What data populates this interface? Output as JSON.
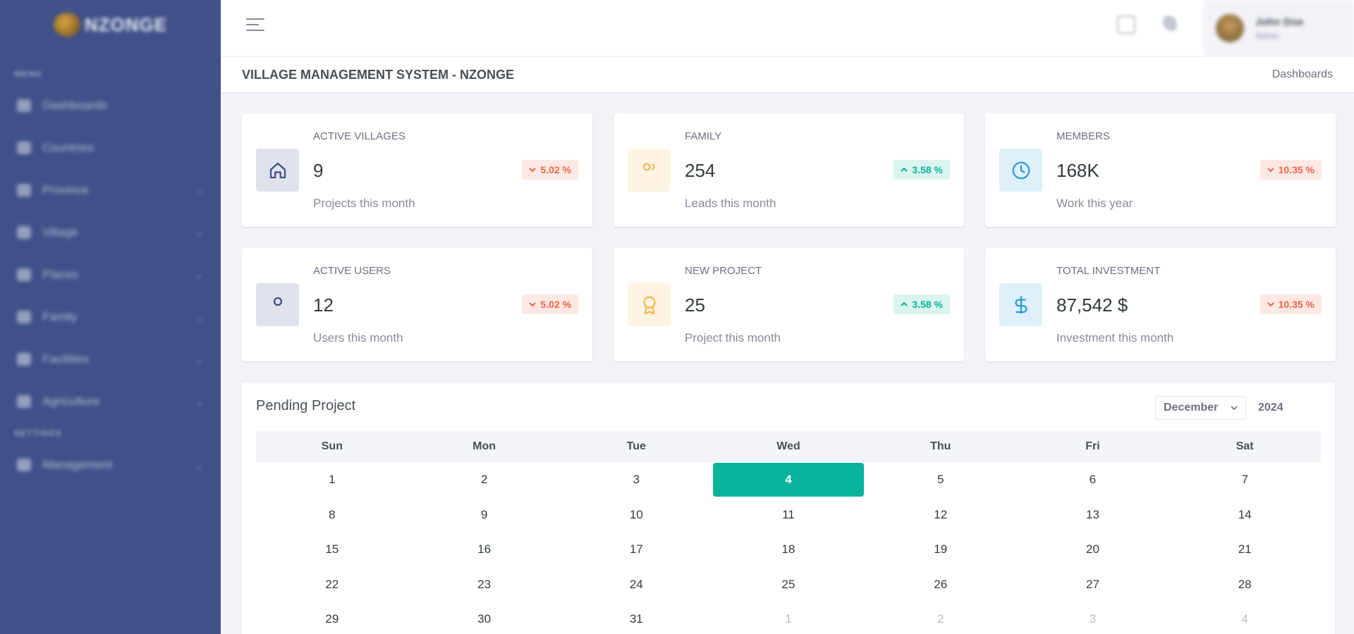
{
  "sidebar": {
    "logo_text": "NZONGE",
    "sections": [
      {
        "title": "MENU"
      },
      {
        "title": "SETTINGS"
      }
    ],
    "items": [
      {
        "label": "Dashboards",
        "icon": "dashboard-icon",
        "chevron": false
      },
      {
        "label": "Countries",
        "icon": "globe-icon",
        "chevron": false
      },
      {
        "label": "Province",
        "icon": "map-icon",
        "chevron": true
      },
      {
        "label": "Village",
        "icon": "building-icon",
        "chevron": true
      },
      {
        "label": "Places",
        "icon": "pin-icon",
        "chevron": true
      },
      {
        "label": "Family",
        "icon": "users-icon",
        "chevron": true
      },
      {
        "label": "Facilities",
        "icon": "home-icon",
        "chevron": true
      },
      {
        "label": "Agriculture",
        "icon": "plant-icon",
        "chevron": true
      },
      {
        "label": "Management",
        "icon": "briefcase-icon",
        "chevron": true
      }
    ]
  },
  "topbar": {
    "user_name": "John Doe",
    "user_role": "Admin"
  },
  "page": {
    "title": "VILLAGE MANAGEMENT SYSTEM - NZONGE",
    "breadcrumb": "Dashboards"
  },
  "cards": [
    {
      "label": "ACTIVE VILLAGES",
      "value": "9",
      "sub": "Projects this month",
      "change": "5.02 %",
      "trend": "down",
      "icon": "home-icon",
      "icon_bg": "#dfe2ea",
      "icon_color": "#405189"
    },
    {
      "label": "FAMILY",
      "value": "254",
      "sub": "Leads this month",
      "change": "3.58 %",
      "trend": "up",
      "icon": "users-icon",
      "icon_bg": "#fef4e4",
      "icon_color": "#f7b84b"
    },
    {
      "label": "MEMBERS",
      "value": "168K",
      "sub": "Work this year",
      "change": "10.35 %",
      "trend": "down",
      "icon": "clock-icon",
      "icon_bg": "#dff0fa",
      "icon_color": "#299cdb"
    },
    {
      "label": "ACTIVE USERS",
      "value": "12",
      "sub": "Users this month",
      "change": "5.02 %",
      "trend": "down",
      "icon": "user-icon",
      "icon_bg": "#dfe2ea",
      "icon_color": "#405189"
    },
    {
      "label": "NEW PROJECT",
      "value": "25",
      "sub": "Project this month",
      "change": "3.58 %",
      "trend": "up",
      "icon": "award-icon",
      "icon_bg": "#fef4e4",
      "icon_color": "#f7b84b"
    },
    {
      "label": "TOTAL INVESTMENT",
      "value": "87,542 $",
      "sub": "Investment this month",
      "change": "10.35 %",
      "trend": "down",
      "icon": "dollar-icon",
      "icon_bg": "#dff0fa",
      "icon_color": "#299cdb"
    }
  ],
  "calendar": {
    "title": "Pending Project",
    "month": "December",
    "year": "2024",
    "weekdays": [
      "Sun",
      "Mon",
      "Tue",
      "Wed",
      "Thu",
      "Fri",
      "Sat"
    ],
    "today": "4",
    "accent": "#0ab39c",
    "weeks": [
      [
        {
          "d": "1"
        },
        {
          "d": "2"
        },
        {
          "d": "3"
        },
        {
          "d": "4",
          "today": true
        },
        {
          "d": "5"
        },
        {
          "d": "6"
        },
        {
          "d": "7"
        }
      ],
      [
        {
          "d": "8"
        },
        {
          "d": "9"
        },
        {
          "d": "10"
        },
        {
          "d": "11"
        },
        {
          "d": "12"
        },
        {
          "d": "13"
        },
        {
          "d": "14"
        }
      ],
      [
        {
          "d": "15"
        },
        {
          "d": "16"
        },
        {
          "d": "17"
        },
        {
          "d": "18"
        },
        {
          "d": "19"
        },
        {
          "d": "20"
        },
        {
          "d": "21"
        }
      ],
      [
        {
          "d": "22"
        },
        {
          "d": "23"
        },
        {
          "d": "24"
        },
        {
          "d": "25"
        },
        {
          "d": "26"
        },
        {
          "d": "27"
        },
        {
          "d": "28"
        }
      ],
      [
        {
          "d": "29"
        },
        {
          "d": "30"
        },
        {
          "d": "31"
        },
        {
          "d": "1",
          "muted": true
        },
        {
          "d": "2",
          "muted": true
        },
        {
          "d": "3",
          "muted": true
        },
        {
          "d": "4",
          "muted": true
        }
      ]
    ]
  }
}
